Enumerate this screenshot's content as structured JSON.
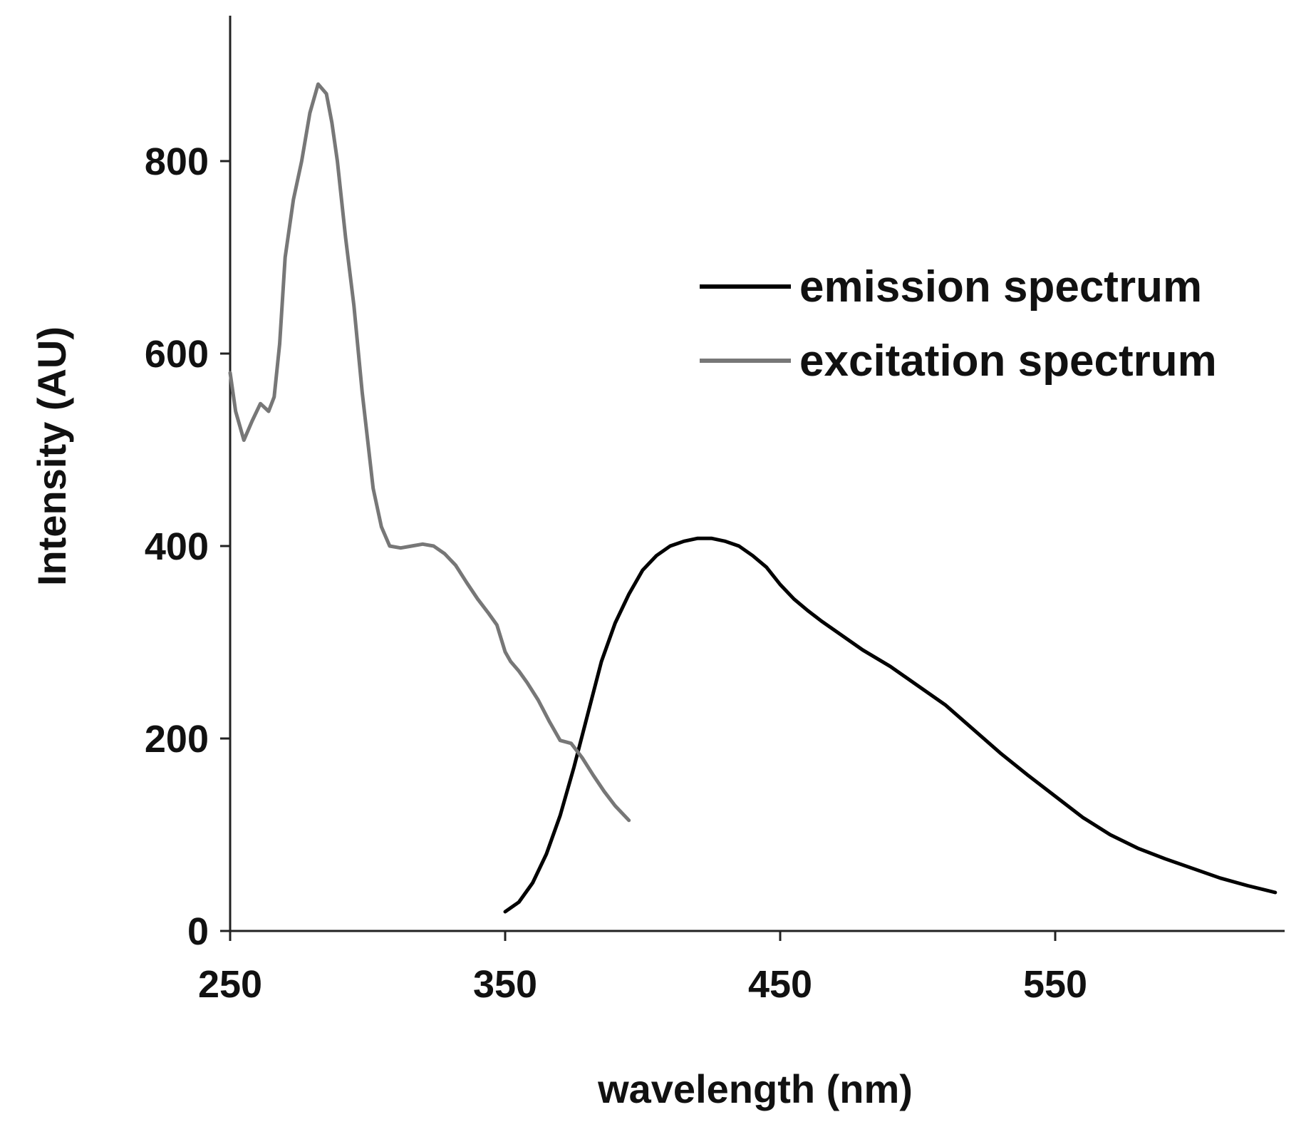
{
  "chart_data": {
    "type": "line",
    "title": "",
    "xlabel": "wavelength (nm)",
    "ylabel": "Intensity (AU)",
    "xlim": [
      250,
      630
    ],
    "ylim": [
      0,
      950
    ],
    "xticks": [
      250,
      350,
      450,
      550
    ],
    "xtick_labels": [
      "250",
      "350",
      "450",
      "550"
    ],
    "yticks": [
      0,
      200,
      400,
      600,
      800
    ],
    "ytick_labels": [
      "0",
      "200",
      "400",
      "600",
      "800"
    ],
    "grid": false,
    "legend_position": "top-right",
    "series": [
      {
        "name": "emission spectrum",
        "color": "#000000",
        "x": [
          350,
          355,
          360,
          365,
          370,
          375,
          380,
          385,
          390,
          395,
          400,
          405,
          410,
          415,
          420,
          425,
          430,
          435,
          440,
          445,
          450,
          455,
          460,
          465,
          470,
          475,
          480,
          490,
          500,
          510,
          520,
          530,
          540,
          550,
          560,
          570,
          580,
          590,
          600,
          610,
          620,
          630
        ],
        "y": [
          20,
          30,
          50,
          80,
          120,
          170,
          225,
          280,
          320,
          350,
          375,
          390,
          400,
          405,
          408,
          408,
          405,
          400,
          390,
          378,
          360,
          345,
          333,
          322,
          312,
          302,
          292,
          275,
          255,
          235,
          210,
          185,
          162,
          140,
          118,
          100,
          86,
          75,
          65,
          55,
          47,
          40
        ]
      },
      {
        "name": "excitation spectrum",
        "color": "#777777",
        "x": [
          250,
          252,
          255,
          258,
          261,
          264,
          266,
          268,
          270,
          273,
          276,
          279,
          282,
          285,
          287,
          289,
          292,
          295,
          298,
          300,
          302,
          305,
          308,
          312,
          316,
          320,
          324,
          328,
          332,
          336,
          340,
          344,
          347,
          350,
          352,
          355,
          358,
          362,
          366,
          370,
          374,
          378,
          382,
          386,
          390,
          395
        ],
        "y": [
          580,
          540,
          510,
          530,
          548,
          540,
          555,
          610,
          700,
          760,
          800,
          850,
          880,
          870,
          840,
          800,
          720,
          650,
          560,
          510,
          460,
          420,
          400,
          398,
          400,
          402,
          400,
          392,
          380,
          362,
          345,
          330,
          318,
          290,
          280,
          270,
          258,
          240,
          218,
          198,
          195,
          180,
          162,
          145,
          130,
          115
        ]
      }
    ]
  }
}
